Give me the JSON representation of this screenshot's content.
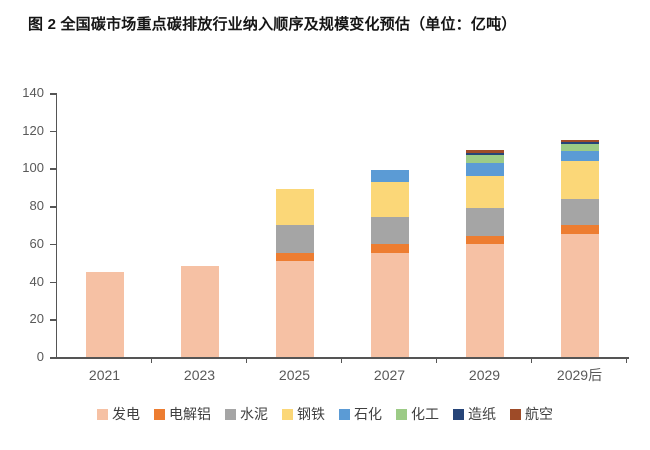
{
  "chart_data": {
    "type": "bar",
    "stacked": true,
    "title": "图 2 全国碳市场重点碳排放行业纳入顺序及规模变化预估（单位：亿吨）",
    "unit": "亿吨",
    "categories": [
      "2021",
      "2023",
      "2025",
      "2027",
      "2029",
      "2029后"
    ],
    "series": [
      {
        "name": "发电",
        "color": "#F6C1A4",
        "values": [
          45,
          48,
          51,
          55,
          60,
          65
        ]
      },
      {
        "name": "电解铝",
        "color": "#ED7D31",
        "values": [
          0,
          0,
          4,
          5,
          4,
          5
        ]
      },
      {
        "name": "水泥",
        "color": "#A5A5A5",
        "values": [
          0,
          0,
          15,
          14,
          15,
          14
        ]
      },
      {
        "name": "钢铁",
        "color": "#FBD778",
        "values": [
          0,
          0,
          19,
          19,
          17,
          20
        ]
      },
      {
        "name": "石化",
        "color": "#5B9BD5",
        "values": [
          0,
          0,
          0,
          6,
          7,
          5
        ]
      },
      {
        "name": "化工",
        "color": "#9CCB86",
        "values": [
          0,
          0,
          0,
          0,
          4,
          4
        ]
      },
      {
        "name": "造纸",
        "color": "#264478",
        "values": [
          0,
          0,
          0,
          0,
          1,
          1
        ]
      },
      {
        "name": "航空",
        "color": "#9E4B28",
        "values": [
          0,
          0,
          0,
          0,
          2,
          1
        ]
      }
    ],
    "totals": [
      45,
      48,
      89,
      99,
      110,
      115
    ],
    "ylim": [
      0,
      140
    ],
    "yticks": [
      0,
      20,
      40,
      60,
      80,
      100,
      120,
      140
    ],
    "xlabel": "",
    "ylabel": "",
    "grid": false,
    "legend_position": "bottom",
    "axis_color": "#555555",
    "tick_label_color": "#595959"
  }
}
